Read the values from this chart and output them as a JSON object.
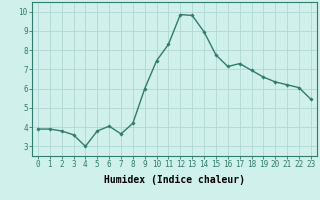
{
  "x": [
    0,
    1,
    2,
    3,
    4,
    5,
    6,
    7,
    8,
    9,
    10,
    11,
    12,
    13,
    14,
    15,
    16,
    17,
    18,
    19,
    20,
    21,
    22,
    23
  ],
  "y": [
    3.9,
    3.9,
    3.8,
    3.6,
    3.0,
    3.8,
    4.05,
    3.65,
    4.2,
    6.0,
    7.45,
    8.3,
    9.85,
    9.8,
    8.95,
    7.75,
    7.15,
    7.3,
    6.95,
    6.6,
    6.35,
    6.2,
    6.05,
    5.45
  ],
  "line_color": "#2e7d6e",
  "marker": "D",
  "marker_size": 1.8,
  "line_width": 1.0,
  "background_color": "#cff0eb",
  "grid_color": "#b0d8d2",
  "xlabel": "Humidex (Indice chaleur)",
  "xlabel_fontsize": 7.0,
  "ylim": [
    2.5,
    10.5
  ],
  "xlim": [
    -0.5,
    23.5
  ],
  "yticks": [
    3,
    4,
    5,
    6,
    7,
    8,
    9,
    10
  ],
  "xticks": [
    0,
    1,
    2,
    3,
    4,
    5,
    6,
    7,
    8,
    9,
    10,
    11,
    12,
    13,
    14,
    15,
    16,
    17,
    18,
    19,
    20,
    21,
    22,
    23
  ],
  "tick_fontsize": 5.5,
  "spine_color": "#2e7d6e"
}
